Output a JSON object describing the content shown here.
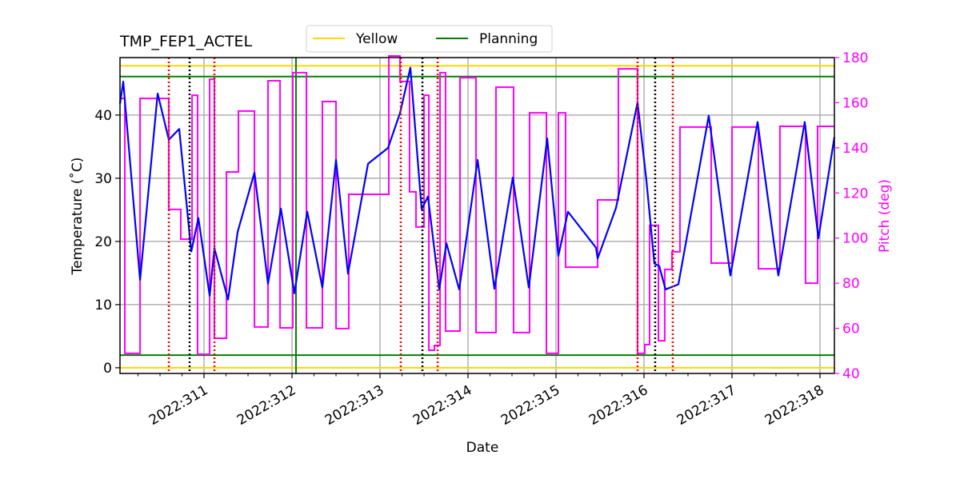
{
  "chart_data": {
    "type": "line",
    "title": "TMP_FEP1_ACTEL",
    "xlabel": "Date",
    "ylabel": "Temperature (˚C)",
    "y2label": "Pitch (deg)",
    "xlim": [
      310.045,
      318.164
    ],
    "ylim": [
      -0.9,
      49.1
    ],
    "y2lim": [
      40,
      180
    ],
    "grid": true,
    "legend_placement": "top-center",
    "x_ticks": [
      {
        "value": 311,
        "label": "2022:311"
      },
      {
        "value": 312,
        "label": "2022:312"
      },
      {
        "value": 313,
        "label": "2022:313"
      },
      {
        "value": 314,
        "label": "2022:314"
      },
      {
        "value": 315,
        "label": "2022:315"
      },
      {
        "value": 316,
        "label": "2022:316"
      },
      {
        "value": 317,
        "label": "2022:317"
      },
      {
        "value": 318,
        "label": "2022:318"
      }
    ],
    "y_ticks": [
      0,
      10,
      20,
      30,
      40
    ],
    "y2_ticks": [
      40,
      60,
      80,
      100,
      120,
      140,
      160,
      180
    ],
    "colors": {
      "temperature": "#0000ff",
      "pitch": "#ff00ff",
      "yellow": "#ffd700",
      "planning": "#008000",
      "red_marker": "#ff0000",
      "black_marker": "#000000",
      "grid": "#b0b0b0"
    },
    "legend": [
      {
        "label": "Yellow",
        "color": "#ffd700"
      },
      {
        "label": "Planning",
        "color": "#008000"
      }
    ],
    "limits": {
      "yellow": [
        0,
        47.8
      ],
      "planning": [
        2.0,
        46.1
      ],
      "planning_vertical": 312.045
    },
    "red_markers": [
      310.6,
      311.118,
      313.236,
      313.655,
      315.927,
      316.327
    ],
    "black_markers": [
      310.836,
      313.482,
      316.127
    ],
    "temperature": {
      "x": [
        310.045,
        310.082,
        310.273,
        310.473,
        310.6,
        310.718,
        310.855,
        310.936,
        311.064,
        311.118,
        311.273,
        311.382,
        311.573,
        311.727,
        311.873,
        312.027,
        312.173,
        312.345,
        312.5,
        312.636,
        312.864,
        313.091,
        313.227,
        313.345,
        313.473,
        313.545,
        313.673,
        313.755,
        313.9,
        314.109,
        314.3,
        314.509,
        314.691,
        314.9,
        315.027,
        315.136,
        315.455,
        315.473,
        315.682,
        315.927,
        316.027,
        316.118,
        316.173,
        316.245,
        316.391,
        316.736,
        316.982,
        317.291,
        317.527,
        317.827,
        317.982,
        318.164
      ],
      "y": [
        41.8,
        45.3,
        13.9,
        43.4,
        36.1,
        37.8,
        18.4,
        23.7,
        11.4,
        18.9,
        10.8,
        21.5,
        30.9,
        13.3,
        25.2,
        11.8,
        24.7,
        12.7,
        32.9,
        14.9,
        32.3,
        34.8,
        40.3,
        47.5,
        25.1,
        27.1,
        12.4,
        19.7,
        12.4,
        32.9,
        12.5,
        30.1,
        12.7,
        36.3,
        17.7,
        24.7,
        19.0,
        17.3,
        25.3,
        42.0,
        29.7,
        16.5,
        16.1,
        12.4,
        13.2,
        39.9,
        14.6,
        38.9,
        14.6,
        38.9,
        20.5,
        36.5
      ]
    },
    "pitch": {
      "x": [
        310.045,
        310.1,
        310.273,
        310.6,
        310.736,
        310.864,
        310.927,
        311.064,
        311.118,
        311.255,
        311.391,
        311.573,
        311.727,
        311.864,
        312.009,
        312.164,
        312.345,
        312.5,
        312.645,
        313.1,
        313.227,
        313.336,
        313.409,
        313.5,
        313.555,
        313.618,
        313.682,
        313.745,
        313.909,
        314.091,
        314.318,
        314.518,
        314.7,
        314.891,
        315.027,
        315.109,
        315.473,
        315.709,
        315.927,
        316.009,
        316.064,
        316.164,
        316.236,
        316.318,
        316.409,
        316.764,
        317.0,
        317.3,
        317.545,
        317.836,
        317.973
      ],
      "y": [
        161.9,
        48.9,
        161.9,
        112.7,
        99.5,
        163.3,
        48.5,
        170.4,
        55.6,
        129.3,
        156.3,
        60.6,
        169.7,
        60.2,
        173.3,
        60.2,
        160.5,
        59.9,
        119.4,
        181,
        169.4,
        120.5,
        104.9,
        163.3,
        50.3,
        52.4,
        173.3,
        58.8,
        171.1,
        58.1,
        166.9,
        58.1,
        155.5,
        48.9,
        155.5,
        87.1,
        116.9,
        175.0,
        48.9,
        52.8,
        105.6,
        54.5,
        86.1,
        93.9,
        149.2,
        88.9,
        149.2,
        86.4,
        149.5,
        80.0,
        149.5
      ]
    }
  }
}
